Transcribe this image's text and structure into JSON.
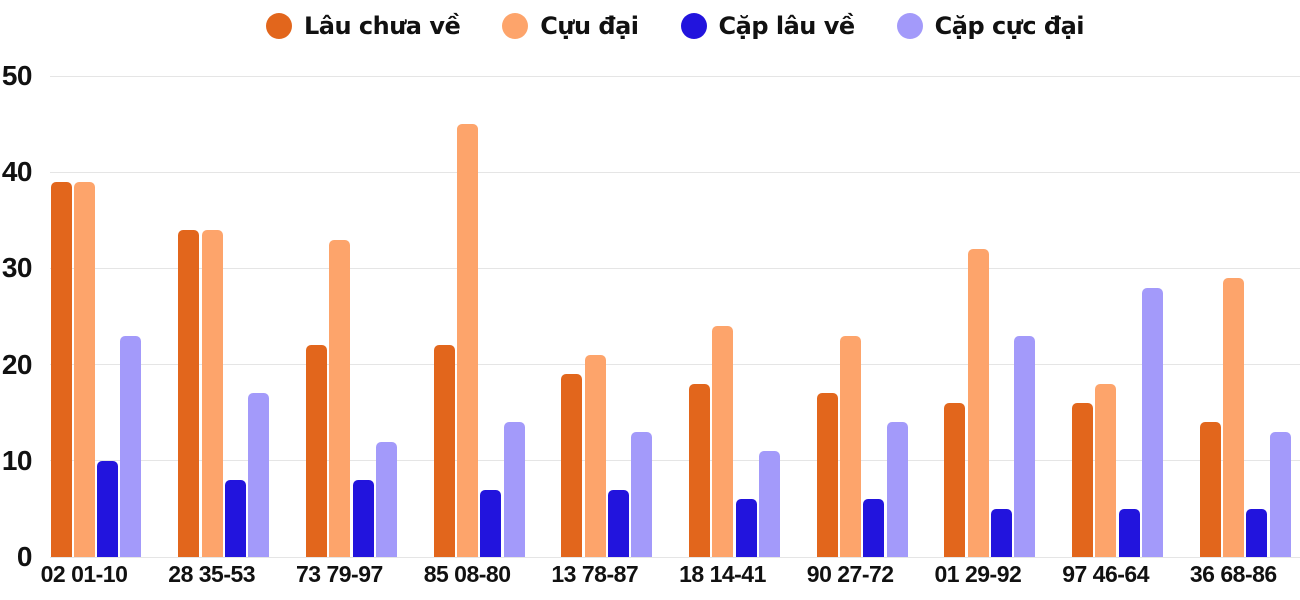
{
  "chart_data": {
    "type": "bar",
    "title": "",
    "xlabel": "",
    "ylabel": "",
    "categories": [
      "02 01-10",
      "28 35-53",
      "73 79-97",
      "85 08-80",
      "13 78-87",
      "18 14-41",
      "90 27-72",
      "01 29-92",
      "97 46-64",
      "36 68-86"
    ],
    "series": [
      {
        "name": "Lâu chưa về",
        "color": "#E2661C",
        "values": [
          39,
          34,
          22,
          22,
          19,
          18,
          17,
          16,
          16,
          14
        ]
      },
      {
        "name": "Cựu đại",
        "color": "#FDA46B",
        "values": [
          39,
          34,
          33,
          45,
          21,
          24,
          23,
          32,
          18,
          29
        ]
      },
      {
        "name": "Cặp lâu về",
        "color": "#2214DD",
        "values": [
          10,
          8,
          8,
          7,
          7,
          6,
          6,
          5,
          5,
          5
        ]
      },
      {
        "name": "Cặp cực đại",
        "color": "#A39AFA",
        "values": [
          23,
          17,
          12,
          14,
          13,
          11,
          14,
          23,
          28,
          13
        ]
      }
    ],
    "yaxis": {
      "min": 0,
      "max": 50,
      "tick_step": 10,
      "ticks": [
        0,
        10,
        20,
        30,
        40,
        50
      ]
    },
    "legend_position": "top",
    "grid": true,
    "grid_color": "#E5E5E5",
    "text_color": "#111111",
    "background": "#FFFFFF"
  }
}
